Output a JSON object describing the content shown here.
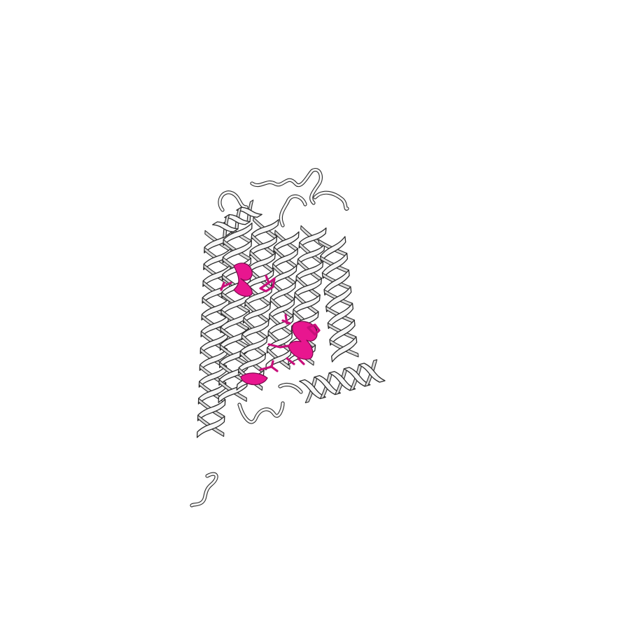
{
  "scene": {
    "background": "#ffffff",
    "ribbon_color": "#f4f4f4",
    "outline_color": "#2a2a2a",
    "highlight_color": "#e8168f"
  },
  "structure": {
    "representation": "cartoon",
    "helix_count": 8,
    "highlighted_site_count": 4
  }
}
